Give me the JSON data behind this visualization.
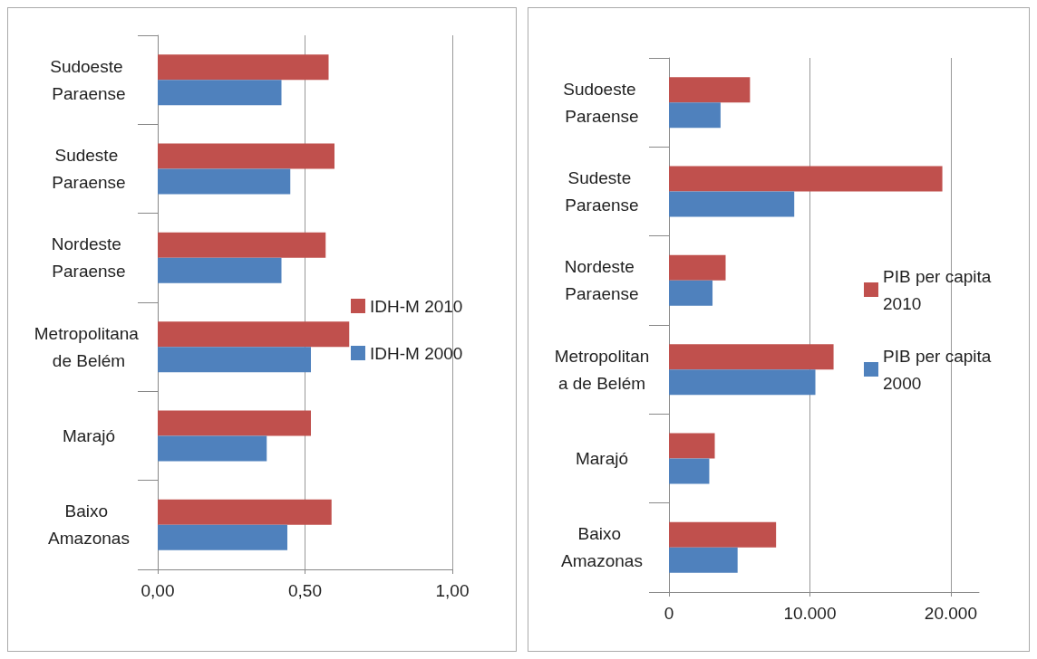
{
  "chart_data": [
    {
      "type": "bar",
      "orientation": "horizontal",
      "categories": [
        "Sudoeste Paraense",
        "Sudeste Paraense",
        "Nordeste Paraense",
        "Metropolitana de Belém",
        "Marajó",
        "Baixo Amazonas"
      ],
      "series": [
        {
          "name": "IDH-M 2010",
          "color": "#c0504d",
          "values": [
            0.58,
            0.6,
            0.57,
            0.65,
            0.52,
            0.59
          ]
        },
        {
          "name": "IDH-M 2000",
          "color": "#4f81bd",
          "values": [
            0.42,
            0.45,
            0.42,
            0.52,
            0.37,
            0.44
          ]
        }
      ],
      "xlim": [
        0,
        1
      ],
      "xticks": [
        {
          "value": 0,
          "label": "0,00"
        },
        {
          "value": 0.5,
          "label": "0,50"
        },
        {
          "value": 1,
          "label": "1,00"
        }
      ],
      "grid": "x",
      "legend": "right"
    },
    {
      "type": "bar",
      "orientation": "horizontal",
      "categories": [
        "Sudoeste Paraense",
        "Sudeste Paraense",
        "Nordeste Paraense",
        "Metropolitana de Belém",
        "Marajó",
        "Baixo Amazonas"
      ],
      "series": [
        {
          "name": "PIB per capita 2010",
          "color": "#c0504d",
          "values": [
            5750,
            19400,
            4020,
            11680,
            3250,
            7600
          ]
        },
        {
          "name": "PIB per capita 2000",
          "color": "#4f81bd",
          "values": [
            3660,
            8890,
            3090,
            10390,
            2860,
            4870
          ]
        }
      ],
      "xlim": [
        0,
        22000
      ],
      "xticks": [
        0,
        {
          "value": 10000,
          "label": "10.000"
        },
        {
          "value": 20000,
          "label": "20.000"
        }
      ],
      "grid": "x",
      "legend": "right"
    }
  ]
}
